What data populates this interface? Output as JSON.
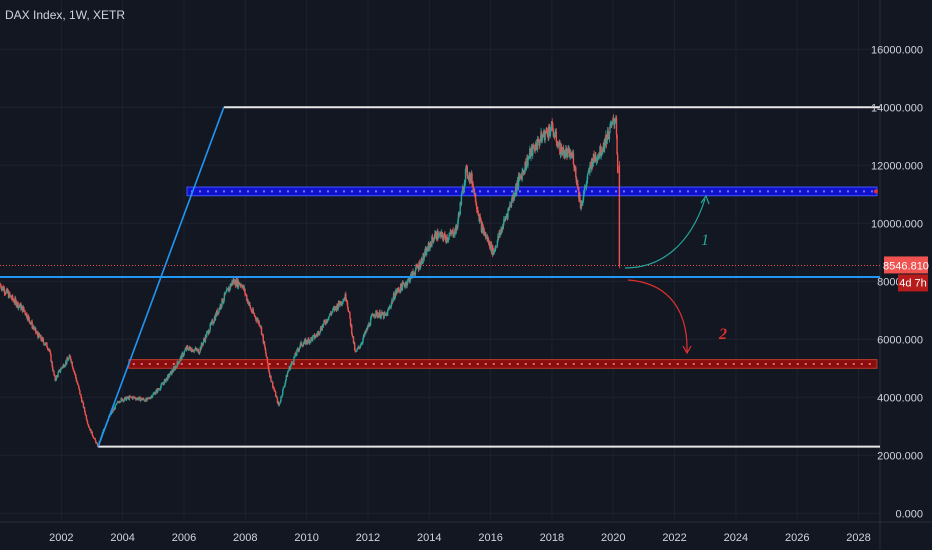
{
  "header": {
    "title": "DAX Index, 1W, XETR"
  },
  "colors": {
    "background": "#131722",
    "grid": "#1e2230",
    "axis_text": "#d1d4dc",
    "up": "#26a69a",
    "down": "#ef5350",
    "white_line": "#e8e8e8",
    "channel_line": "#2196f3",
    "blue_zone": "#1111cc",
    "red_zone": "#8b0e0e",
    "price_line": "#ef5350",
    "arrow_up": "#26a69a",
    "arrow_down": "#e03030"
  },
  "price_tag": {
    "price": "8546.810",
    "countdown": "4d 7h"
  },
  "annotations": {
    "scenario_1": "1",
    "scenario_2": "2"
  },
  "chart_data": {
    "type": "candlestick",
    "title": "DAX Index, 1W, XETR",
    "y_ticks": [
      "0.000",
      "2000.000",
      "4000.000",
      "6000.000",
      "8000.000",
      "10000.000",
      "12000.000",
      "14000.000",
      "16000.000"
    ],
    "y_tick_values": [
      0,
      2000,
      4000,
      6000,
      8000,
      10000,
      12000,
      14000,
      16000
    ],
    "x_ticks": [
      "2002",
      "2004",
      "2006",
      "2008",
      "2010",
      "2012",
      "2014",
      "2016",
      "2018",
      "2020",
      "2022",
      "2024",
      "2026",
      "2028"
    ],
    "x_tick_values": [
      2002,
      2004,
      2006,
      2008,
      2010,
      2012,
      2014,
      2016,
      2018,
      2020,
      2022,
      2024,
      2026,
      2028
    ],
    "ylim": [
      -300,
      17700
    ],
    "xlim": [
      2000.0,
      2028.7
    ],
    "last_price": 8546.81,
    "price_path": [
      [
        2000.0,
        7900
      ],
      [
        2000.4,
        7400
      ],
      [
        2000.8,
        7000
      ],
      [
        2001.2,
        6200
      ],
      [
        2001.6,
        5700
      ],
      [
        2001.8,
        4600
      ],
      [
        2002.0,
        5000
      ],
      [
        2002.3,
        5400
      ],
      [
        2002.6,
        4200
      ],
      [
        2002.9,
        3000
      ],
      [
        2003.2,
        2300
      ],
      [
        2003.5,
        3200
      ],
      [
        2003.9,
        3900
      ],
      [
        2004.3,
        4000
      ],
      [
        2004.8,
        3900
      ],
      [
        2005.2,
        4300
      ],
      [
        2005.7,
        5000
      ],
      [
        2006.1,
        5700
      ],
      [
        2006.5,
        5600
      ],
      [
        2006.9,
        6500
      ],
      [
        2007.3,
        7400
      ],
      [
        2007.6,
        8000
      ],
      [
        2007.9,
        7900
      ],
      [
        2008.2,
        7000
      ],
      [
        2008.5,
        6500
      ],
      [
        2008.8,
        4800
      ],
      [
        2009.1,
        3700
      ],
      [
        2009.4,
        4900
      ],
      [
        2009.8,
        5800
      ],
      [
        2010.3,
        6100
      ],
      [
        2010.8,
        6900
      ],
      [
        2011.3,
        7500
      ],
      [
        2011.6,
        5500
      ],
      [
        2011.8,
        5900
      ],
      [
        2012.2,
        6900
      ],
      [
        2012.6,
        6800
      ],
      [
        2012.9,
        7600
      ],
      [
        2013.3,
        8000
      ],
      [
        2013.7,
        8600
      ],
      [
        2014.2,
        9600
      ],
      [
        2014.6,
        9500
      ],
      [
        2014.9,
        9800
      ],
      [
        2015.2,
        11800
      ],
      [
        2015.4,
        11500
      ],
      [
        2015.7,
        9900
      ],
      [
        2016.1,
        9000
      ],
      [
        2016.5,
        10200
      ],
      [
        2016.9,
        11400
      ],
      [
        2017.3,
        12400
      ],
      [
        2017.7,
        13000
      ],
      [
        2018.0,
        13300
      ],
      [
        2018.3,
        12500
      ],
      [
        2018.7,
        12300
      ],
      [
        2018.95,
        10600
      ],
      [
        2019.3,
        12100
      ],
      [
        2019.6,
        12500
      ],
      [
        2019.9,
        13200
      ],
      [
        2020.1,
        13700
      ],
      [
        2020.15,
        12000
      ],
      [
        2020.2,
        8546.81
      ]
    ],
    "trendlines": [
      {
        "kind": "horizontal",
        "y": 14000,
        "x_from": 2007.3,
        "x_to": 2028.7
      },
      {
        "kind": "horizontal",
        "y": 2300,
        "x_from": 2003.2,
        "x_to": 2028.7
      },
      {
        "kind": "horizontal",
        "y": 8150,
        "x_from": 2000.0,
        "x_to": 2028.7
      },
      {
        "kind": "segment",
        "x1": 2003.2,
        "y1": 2300,
        "x2": 2007.3,
        "y2": 14000
      }
    ],
    "zones": [
      {
        "name": "resistance",
        "y_low": 10950,
        "y_high": 11250,
        "x_from": 2006.1,
        "x_to": 2028.6
      },
      {
        "name": "support",
        "y_low": 5000,
        "y_high": 5300,
        "x_from": 2004.2,
        "x_to": 2028.6
      }
    ]
  }
}
